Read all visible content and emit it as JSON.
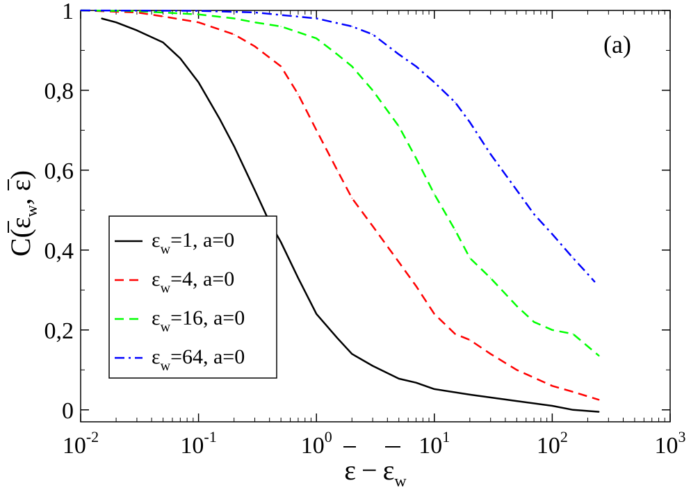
{
  "chart_data": {
    "type": "line",
    "title": "",
    "panel_label": "(a)",
    "xscale": "log",
    "xlim": [
      0.01,
      1000
    ],
    "ylim": [
      -0.03,
      1.0
    ],
    "grid": false,
    "legend_position": "lower-left",
    "xlabel": {
      "symbol": "ε",
      "op": "−",
      "sub": "w"
    },
    "ylabel": {
      "prefix": "C(",
      "sym": "ε",
      "sub": "w",
      "comma": ", ",
      "sym2": "ε",
      "suffix": ")"
    },
    "x_ticks": [
      {
        "value": 0.01,
        "base": "10",
        "exp": "-2"
      },
      {
        "value": 0.1,
        "base": "10",
        "exp": "-1"
      },
      {
        "value": 1,
        "base": "10",
        "exp": "0"
      },
      {
        "value": 10,
        "base": "10",
        "exp": "1"
      },
      {
        "value": 100,
        "base": "10",
        "exp": "2"
      },
      {
        "value": 1000,
        "base": "10",
        "exp": "3"
      }
    ],
    "y_ticks": [
      {
        "value": 0,
        "label": "0"
      },
      {
        "value": 0.2,
        "label": "0,2"
      },
      {
        "value": 0.4,
        "label": "0,4"
      },
      {
        "value": 0.6,
        "label": "0,6"
      },
      {
        "value": 0.8,
        "label": "0,8"
      },
      {
        "value": 1.0,
        "label": "1"
      }
    ],
    "series": [
      {
        "name": "εw=1, a=0",
        "legend": {
          "sym": "ε",
          "sub": "w",
          "rest": "=1,   a=0"
        },
        "color": "#000000",
        "style": "solid",
        "x": [
          0.015,
          0.02,
          0.03,
          0.05,
          0.07,
          0.1,
          0.15,
          0.2,
          0.3,
          0.4,
          0.5,
          0.7,
          1.0,
          1.5,
          2,
          3,
          5,
          7,
          10,
          20,
          50,
          100,
          150,
          250
        ],
        "y": [
          0.98,
          0.97,
          0.95,
          0.92,
          0.88,
          0.82,
          0.73,
          0.66,
          0.55,
          0.47,
          0.42,
          0.33,
          0.24,
          0.18,
          0.14,
          0.11,
          0.078,
          0.068,
          0.052,
          0.038,
          0.022,
          0.01,
          0.0,
          -0.005
        ]
      },
      {
        "name": "εw=4, a=0",
        "legend": {
          "sym": "ε",
          "sub": "w",
          "rest": "=4,   a=0"
        },
        "color": "#ff0000",
        "style": "dashed",
        "x": [
          0.01,
          0.03,
          0.05,
          0.1,
          0.2,
          0.3,
          0.5,
          0.7,
          1.0,
          1.5,
          2,
          3,
          5,
          7,
          10,
          15,
          20,
          30,
          50,
          100,
          150,
          250
        ],
        "y": [
          1.0,
          0.995,
          0.985,
          0.97,
          0.94,
          0.91,
          0.86,
          0.79,
          0.7,
          0.6,
          0.53,
          0.46,
          0.37,
          0.31,
          0.24,
          0.19,
          0.175,
          0.14,
          0.1,
          0.06,
          0.045,
          0.025
        ]
      },
      {
        "name": "εw=16, a=0",
        "legend": {
          "sym": "ε",
          "sub": "w",
          "rest": "=16, a=0"
        },
        "color": "#00ff00",
        "style": "dashed",
        "x": [
          0.01,
          0.03,
          0.1,
          0.2,
          0.3,
          0.5,
          1.0,
          1.5,
          2,
          3,
          5,
          7,
          10,
          15,
          20,
          30,
          50,
          70,
          100,
          150,
          250
        ],
        "y": [
          1.0,
          0.998,
          0.99,
          0.98,
          0.97,
          0.96,
          0.93,
          0.89,
          0.86,
          0.8,
          0.71,
          0.63,
          0.54,
          0.45,
          0.38,
          0.33,
          0.26,
          0.22,
          0.2,
          0.19,
          0.135
        ]
      },
      {
        "name": "εw=64, a=0",
        "legend": {
          "sym": "ε",
          "sub": "w",
          "rest": "=64, a=0"
        },
        "color": "#0000ff",
        "style": "dashdot",
        "x": [
          0.01,
          0.1,
          0.3,
          1.0,
          2,
          3,
          5,
          7,
          10,
          15,
          20,
          30,
          50,
          70,
          100,
          150,
          200,
          230
        ],
        "y": [
          1.0,
          0.999,
          0.995,
          0.98,
          0.96,
          0.94,
          0.89,
          0.86,
          0.82,
          0.77,
          0.72,
          0.64,
          0.55,
          0.49,
          0.44,
          0.38,
          0.34,
          0.32
        ]
      }
    ]
  }
}
